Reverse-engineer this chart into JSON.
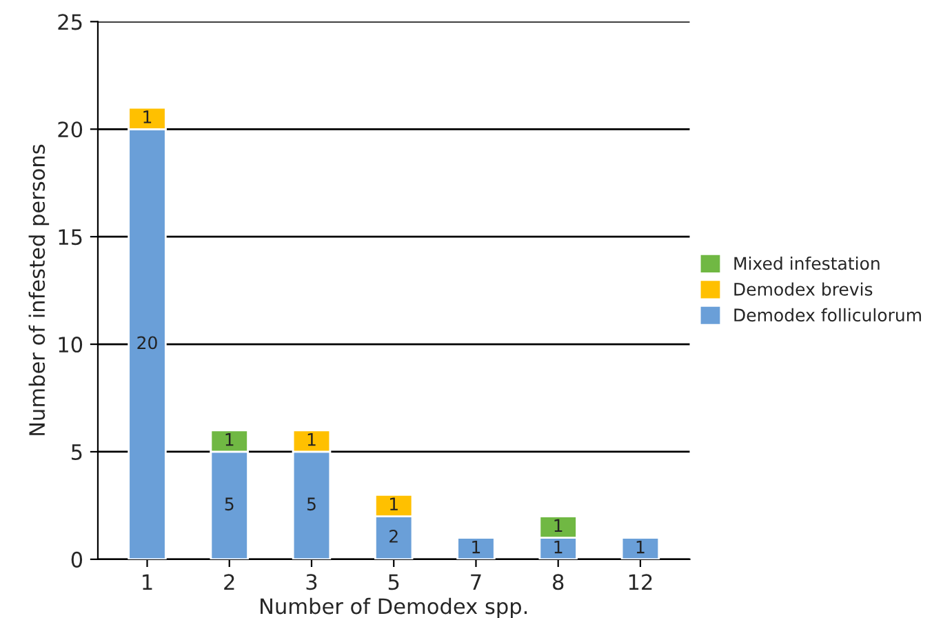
{
  "chart_data": {
    "type": "bar",
    "stacked": true,
    "categories": [
      "1",
      "2",
      "3",
      "5",
      "7",
      "8",
      "12"
    ],
    "xlabel": "Number of Demodex spp.",
    "ylabel": "Number of infested persons",
    "ylim": [
      0,
      25
    ],
    "yticks": [
      0,
      5,
      10,
      15,
      20,
      25
    ],
    "grid": "y",
    "legend": "right",
    "series": [
      {
        "name": "Demodex folliculorum",
        "color": "#6a9fd8",
        "values": [
          20,
          5,
          5,
          2,
          1,
          1,
          1
        ],
        "value_labels": [
          "20",
          "5",
          "5",
          "2",
          "1",
          "1",
          "1"
        ]
      },
      {
        "name": "Demodex brevis",
        "color": "#ffc000",
        "values": [
          1,
          null,
          1,
          1,
          null,
          null,
          null
        ],
        "value_labels": [
          "1",
          null,
          "1",
          "1",
          null,
          null,
          null
        ]
      },
      {
        "name": "Mixed infestation",
        "color": "#70b843",
        "values": [
          null,
          1,
          null,
          null,
          null,
          1,
          null
        ],
        "value_labels": [
          null,
          "1",
          null,
          null,
          null,
          "1",
          null
        ]
      }
    ]
  }
}
